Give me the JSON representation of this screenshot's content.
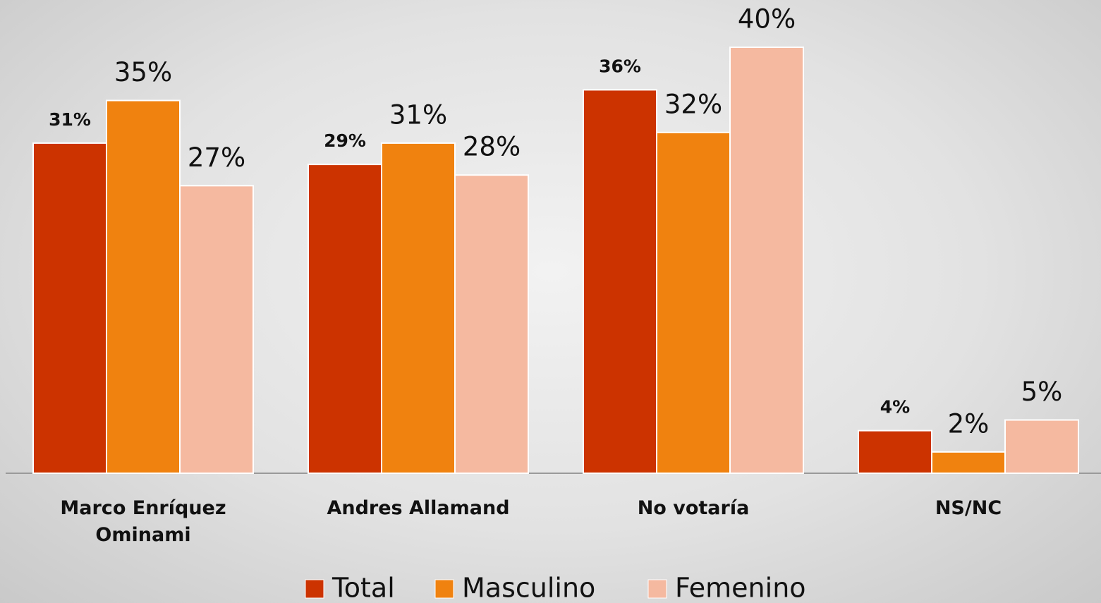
{
  "chart_data": {
    "type": "bar",
    "categories": [
      "Marco Enríquez Ominami",
      "Andres Allamand",
      "No votaría",
      "NS/NC"
    ],
    "series": [
      {
        "name": "Total",
        "color": "#cc3300",
        "values": [
          31,
          29,
          36,
          4
        ],
        "value_labels": [
          "31%",
          "29%",
          "36%",
          "4%"
        ]
      },
      {
        "name": "Masculino",
        "color": "#f0820f",
        "values": [
          35,
          31,
          32,
          2
        ],
        "value_labels": [
          "35%",
          "31%",
          "32%",
          "2%"
        ]
      },
      {
        "name": "Femenino",
        "color": "#f5b9a0",
        "values": [
          27,
          28,
          40,
          5
        ],
        "value_labels": [
          "27%",
          "28%",
          "40%",
          "5%"
        ]
      }
    ],
    "ylim": [
      0,
      40
    ],
    "legend": "bottom"
  }
}
